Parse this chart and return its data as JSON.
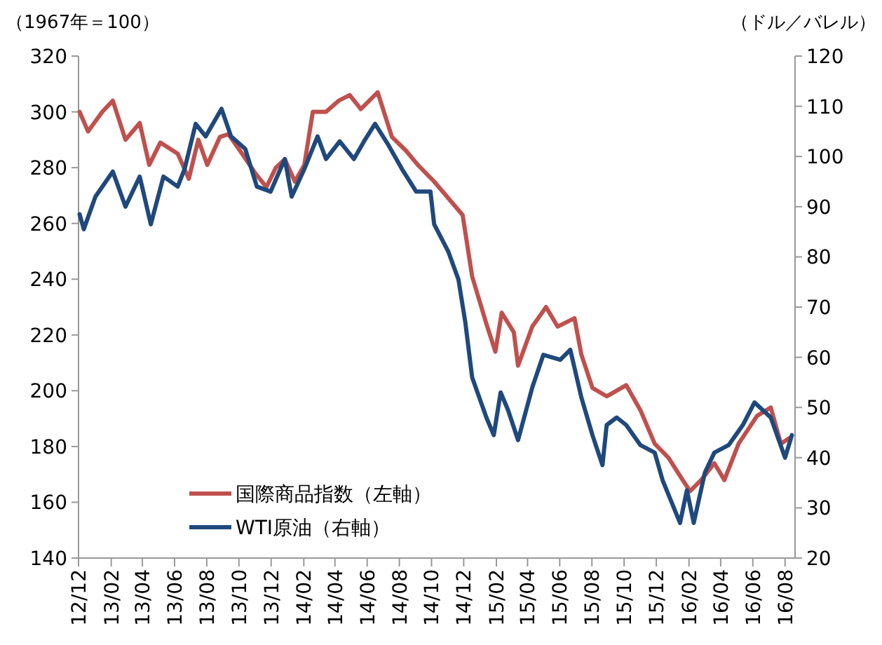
{
  "chart_data": {
    "type": "line",
    "ylabel": "（1967年＝100）",
    "y2label": "（ドル／バレル）",
    "xlim": [
      "2012-12-01",
      "2016-08-20"
    ],
    "xticks": [
      {
        "value": "2012-12-01",
        "label": "12/12"
      },
      {
        "value": "2013-02-01",
        "label": "13/02"
      },
      {
        "value": "2013-04-01",
        "label": "13/04"
      },
      {
        "value": "2013-06-01",
        "label": "13/06"
      },
      {
        "value": "2013-08-01",
        "label": "13/08"
      },
      {
        "value": "2013-10-01",
        "label": "13/10"
      },
      {
        "value": "2013-12-01",
        "label": "13/12"
      },
      {
        "value": "2014-02-01",
        "label": "14/02"
      },
      {
        "value": "2014-04-01",
        "label": "14/04"
      },
      {
        "value": "2014-06-01",
        "label": "14/06"
      },
      {
        "value": "2014-08-01",
        "label": "14/08"
      },
      {
        "value": "2014-10-01",
        "label": "14/10"
      },
      {
        "value": "2014-12-01",
        "label": "14/12"
      },
      {
        "value": "2015-02-01",
        "label": "15/02"
      },
      {
        "value": "2015-04-01",
        "label": "15/04"
      },
      {
        "value": "2015-06-01",
        "label": "15/06"
      },
      {
        "value": "2015-08-01",
        "label": "15/08"
      },
      {
        "value": "2015-10-01",
        "label": "15/10"
      },
      {
        "value": "2015-12-01",
        "label": "15/12"
      },
      {
        "value": "2016-02-01",
        "label": "16/02"
      },
      {
        "value": "2016-04-01",
        "label": "16/04"
      },
      {
        "value": "2016-06-01",
        "label": "16/06"
      },
      {
        "value": "2016-08-01",
        "label": "16/08"
      }
    ],
    "ylim": [
      140,
      320
    ],
    "yticks": [
      140,
      160,
      180,
      200,
      220,
      240,
      260,
      280,
      300,
      320
    ],
    "y2lim": [
      20,
      120
    ],
    "y2ticks": [
      20,
      30,
      40,
      50,
      60,
      70,
      80,
      90,
      100,
      110,
      120
    ],
    "grid": false,
    "legend": "bottom left",
    "line_style": "solid",
    "marker": "none",
    "series": [
      {
        "name": "国際商品指数（左軸）",
        "color": "#c0504d",
        "x": [
          "2012-12-03",
          "2012-12-19",
          "2013-01-15",
          "2013-02-04",
          "2013-02-28",
          "2013-03-27",
          "2013-04-14",
          "2013-05-05",
          "2013-06-07",
          "2013-06-28",
          "2013-07-16",
          "2013-08-02",
          "2013-08-26",
          "2013-09-11",
          "2013-10-07",
          "2013-11-01",
          "2013-11-22",
          "2013-12-10",
          "2013-12-27",
          "2014-01-15",
          "2014-02-02",
          "2014-02-18",
          "2014-03-15",
          "2014-04-08",
          "2014-04-29",
          "2014-05-20",
          "2014-06-21",
          "2014-07-18",
          "2014-08-14",
          "2014-09-05",
          "2014-10-06",
          "2014-11-29",
          "2014-12-17",
          "2015-01-13",
          "2015-01-30",
          "2015-02-11",
          "2015-03-06",
          "2015-03-14",
          "2015-04-10",
          "2015-05-06",
          "2015-05-28",
          "2015-06-29",
          "2015-07-12",
          "2015-08-02",
          "2015-08-29",
          "2015-10-05",
          "2015-11-01",
          "2015-11-28",
          "2015-12-24",
          "2016-01-20",
          "2016-02-03",
          "2016-02-24",
          "2016-03-20",
          "2016-04-08",
          "2016-05-05",
          "2016-06-09",
          "2016-07-05",
          "2016-07-24",
          "2016-08-09"
        ],
        "values": [
          300,
          293,
          300,
          304,
          290,
          296,
          281,
          289,
          285,
          276,
          290,
          281,
          291,
          292,
          285,
          278,
          273,
          280,
          283,
          275,
          281,
          300,
          300,
          304,
          306,
          301,
          307,
          291,
          286,
          281,
          275,
          263,
          241,
          224,
          214,
          228,
          221,
          209,
          223,
          230,
          223,
          226,
          213,
          201,
          198,
          202,
          193,
          181,
          176,
          168,
          164,
          168,
          174,
          168,
          181,
          191,
          194,
          181,
          183
        ]
      },
      {
        "name": "WTI原油（右軸）",
        "color": "#1f497d",
        "axis": "y2",
        "x": [
          "2012-12-03",
          "2012-12-11",
          "2013-01-02",
          "2013-02-04",
          "2013-02-28",
          "2013-03-27",
          "2013-04-17",
          "2013-05-11",
          "2013-06-07",
          "2013-06-20",
          "2013-07-11",
          "2013-07-30",
          "2013-08-29",
          "2013-09-16",
          "2013-10-13",
          "2013-11-04",
          "2013-11-30",
          "2013-12-27",
          "2014-01-09",
          "2014-02-02",
          "2014-02-27",
          "2014-03-15",
          "2014-04-10",
          "2014-05-07",
          "2014-05-26",
          "2014-06-16",
          "2014-07-10",
          "2014-08-06",
          "2014-09-02",
          "2014-09-29",
          "2014-10-06",
          "2014-11-02",
          "2014-11-21",
          "2014-12-04",
          "2014-12-17",
          "2015-01-13",
          "2015-01-27",
          "2015-02-09",
          "2015-02-23",
          "2015-03-14",
          "2015-04-10",
          "2015-05-01",
          "2015-06-02",
          "2015-06-21",
          "2015-07-12",
          "2015-08-02",
          "2015-08-21",
          "2015-08-29",
          "2015-09-17",
          "2015-10-05",
          "2015-11-01",
          "2015-11-28",
          "2015-12-13",
          "2016-01-15",
          "2016-01-28",
          "2016-02-10",
          "2016-03-02",
          "2016-03-20",
          "2016-04-16",
          "2016-05-13",
          "2016-06-04",
          "2016-07-05",
          "2016-08-01",
          "2016-08-14"
        ],
        "values": [
          88.5,
          85.5,
          92,
          97,
          90,
          96,
          86.5,
          96,
          94,
          97.5,
          106.5,
          104,
          109.5,
          104,
          101.5,
          94,
          93,
          99.5,
          92,
          97.5,
          104,
          99.5,
          103,
          99.5,
          103,
          106.5,
          102.5,
          97.5,
          93,
          93,
          86.5,
          81,
          75.5,
          67,
          56,
          48,
          44.5,
          53,
          49.5,
          43.5,
          54,
          60.5,
          59.5,
          61.5,
          52,
          44.5,
          38.5,
          46.5,
          48,
          46.5,
          42.5,
          41,
          35.5,
          27,
          33.5,
          27,
          37,
          41,
          42.5,
          46.5,
          51,
          48,
          40,
          44.5
        ]
      }
    ]
  }
}
